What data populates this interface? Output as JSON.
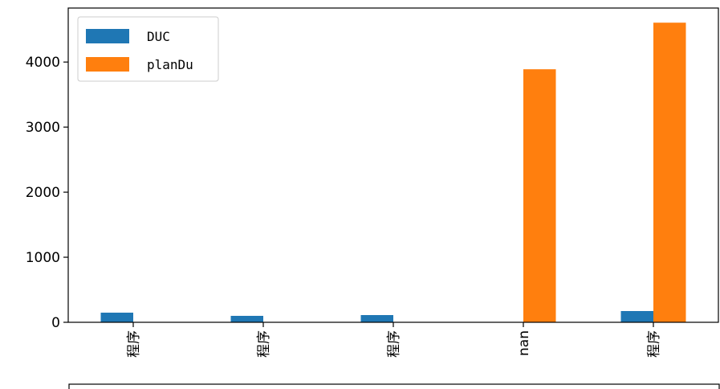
{
  "chart_data": {
    "type": "bar",
    "categories": [
      "程序",
      "程序",
      "程序",
      "nan",
      "程序"
    ],
    "series": [
      {
        "name": "DUC",
        "color": "#1f77b4",
        "values": [
          148,
          99,
          111,
          null,
          173
        ]
      },
      {
        "name": "planDu",
        "color": "#ff7f0e",
        "values": [
          null,
          null,
          null,
          3889,
          4605
        ]
      }
    ],
    "ylim": [
      0,
      4830
    ],
    "yticks": [
      0,
      1000,
      2000,
      3000,
      4000
    ],
    "legend": "upper left"
  }
}
